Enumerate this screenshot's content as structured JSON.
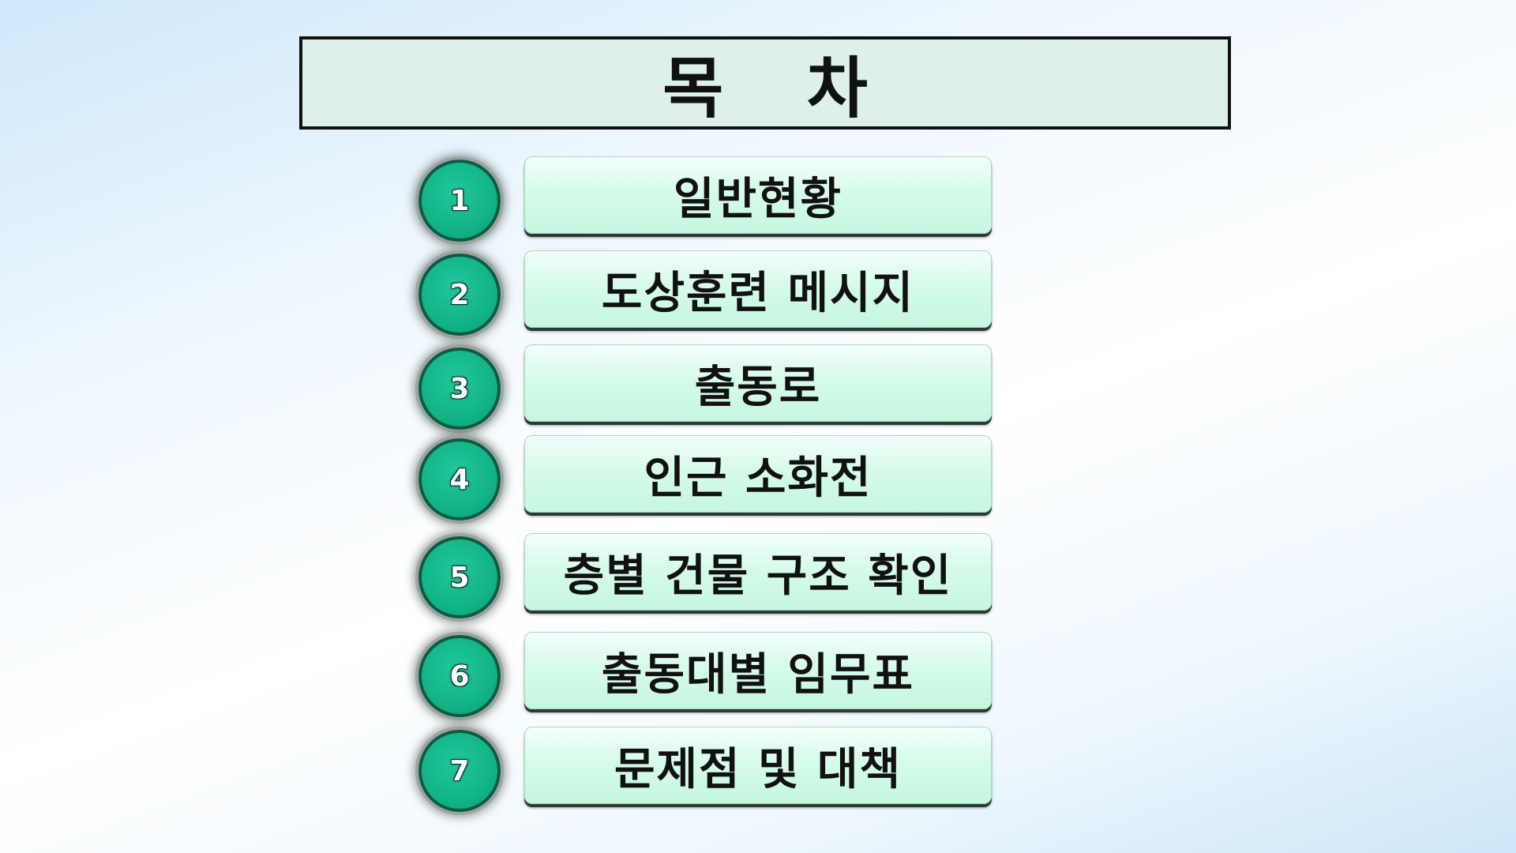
{
  "title": "목 차",
  "items": [
    {
      "number": "1",
      "label": "일반현황"
    },
    {
      "number": "2",
      "label": "도상훈련 메시지"
    },
    {
      "number": "3",
      "label": "출동로"
    },
    {
      "number": "4",
      "label": "인근 소화전"
    },
    {
      "number": "5",
      "label": "층별 건물 구조 확인"
    },
    {
      "number": "6",
      "label": "출동대별 임무표"
    },
    {
      "number": "7",
      "label": "문제점 및 대책"
    }
  ],
  "colors": {
    "circle_fill": "#12b487",
    "circle_border": "#0f5a44",
    "label_fill": "#d6fbea",
    "title_fill": "#ddf1e8"
  }
}
